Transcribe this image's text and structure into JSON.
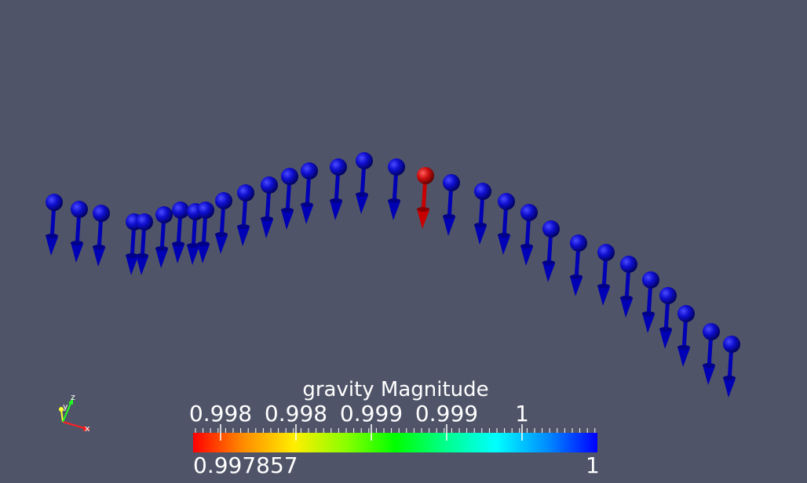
{
  "scalar_bar": {
    "title": "gravity Magnitude",
    "tick_labels": [
      "0.998",
      "0.998",
      "0.999",
      "0.999",
      "1"
    ],
    "range_min": "0.997857",
    "range_max": "1"
  },
  "axes": {
    "x": "x",
    "y": "y",
    "z": "z"
  },
  "colors": {
    "background": "#505468",
    "glyph_high": "#0000b4",
    "glyph_low": "#c80000"
  }
}
